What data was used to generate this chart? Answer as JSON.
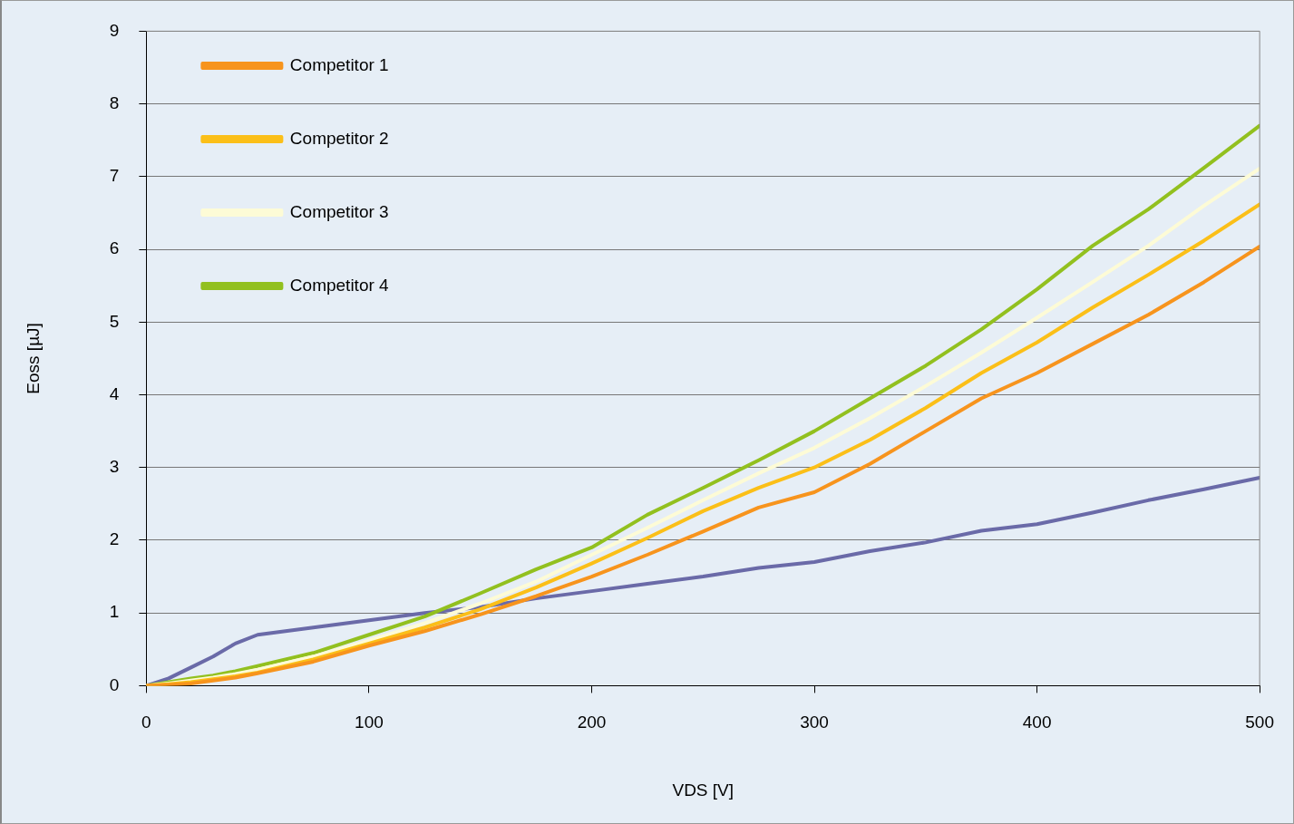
{
  "chart_data": {
    "type": "line",
    "xlabel": "VDS [V]",
    "ylabel": "Eoss [µJ]",
    "x": [
      0,
      10,
      20,
      30,
      40,
      50,
      75,
      100,
      125,
      150,
      175,
      200,
      225,
      250,
      275,
      300,
      325,
      350,
      375,
      400,
      425,
      450,
      475,
      500
    ],
    "xlim": [
      0,
      500
    ],
    "xticks": [
      0,
      100,
      200,
      300,
      400,
      500
    ],
    "ylim": [
      0,
      9
    ],
    "yticks": [
      0,
      1,
      2,
      3,
      4,
      5,
      6,
      7,
      8,
      9
    ],
    "grid": "y",
    "legend": "top left",
    "marker": "none",
    "line_style": "solid",
    "series": [
      {
        "name": "Competitor 1",
        "color": "#f7941d",
        "values": [
          0,
          0.01,
          0.03,
          0.07,
          0.11,
          0.17,
          0.33,
          0.55,
          0.75,
          0.98,
          1.23,
          1.5,
          1.8,
          2.12,
          2.45,
          2.66,
          3.05,
          3.5,
          3.95,
          4.3,
          4.7,
          5.1,
          5.55,
          6.04
        ]
      },
      {
        "name": "Competitor 2",
        "color": "#fbbf18",
        "values": [
          0,
          0.02,
          0.05,
          0.09,
          0.13,
          0.18,
          0.36,
          0.58,
          0.8,
          1.05,
          1.35,
          1.68,
          2.03,
          2.4,
          2.72,
          3.0,
          3.38,
          3.82,
          4.3,
          4.72,
          5.2,
          5.65,
          6.12,
          6.62
        ]
      },
      {
        "name": "Competitor 3",
        "color": "#fdfbd6",
        "values": [
          0,
          0.03,
          0.07,
          0.11,
          0.16,
          0.22,
          0.4,
          0.62,
          0.86,
          1.13,
          1.43,
          1.8,
          2.17,
          2.55,
          2.92,
          3.27,
          3.68,
          4.12,
          4.58,
          5.06,
          5.55,
          6.05,
          6.6,
          7.11
        ]
      },
      {
        "name": "Competitor 4",
        "color": "#92c01f",
        "values": [
          0,
          0.05,
          0.1,
          0.14,
          0.2,
          0.27,
          0.45,
          0.7,
          0.95,
          1.27,
          1.6,
          1.9,
          2.35,
          2.72,
          3.1,
          3.5,
          3.95,
          4.4,
          4.9,
          5.45,
          6.05,
          6.55,
          7.12,
          7.7
        ]
      },
      {
        "color": "#6a6aa8",
        "values": [
          0,
          0.1,
          0.25,
          0.4,
          0.58,
          0.7,
          0.8,
          0.9,
          1.0,
          1.08,
          1.2,
          1.3,
          1.4,
          1.5,
          1.62,
          1.7,
          1.85,
          1.97,
          2.13,
          2.22,
          2.38,
          2.55,
          2.7,
          2.86
        ]
      }
    ]
  }
}
